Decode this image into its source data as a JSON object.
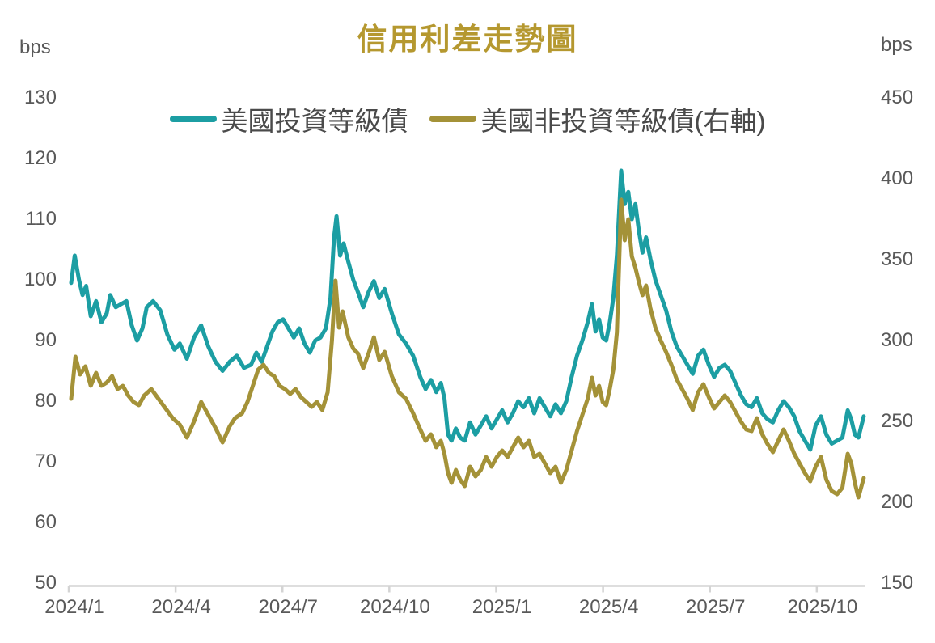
{
  "colors": {
    "title": "#B5982F",
    "axis_text": "#595959",
    "legend_text": "#4A4A4A",
    "axis_line": "#D4D4D4",
    "series_ig": "#1C9EA3",
    "series_hy": "#A49238"
  },
  "chart_data": {
    "type": "line",
    "title": "信用利差走勢圖",
    "grid": false,
    "legend_position": "top-center",
    "x_unit": "months since 2024/1 (fractional, daily spread data)",
    "x_range": [
      0,
      22.25
    ],
    "x_tick_labels": [
      "2024/1",
      "2024/4",
      "2024/7",
      "2024/10",
      "2025/1",
      "2025/4",
      "2025/7",
      "2025/10"
    ],
    "x_tick_positions_months": [
      0,
      3,
      6,
      9,
      12,
      15,
      18,
      21
    ],
    "left_axis": {
      "label": "bps",
      "range": [
        50,
        130
      ],
      "ticks": [
        130,
        120,
        110,
        100,
        90,
        80,
        70,
        60,
        50
      ]
    },
    "right_axis": {
      "label": "bps",
      "range": [
        150,
        450
      ],
      "ticks": [
        450,
        400,
        350,
        300,
        250,
        200,
        150
      ]
    },
    "series": [
      {
        "name": "美國投資等級債",
        "axis": "left",
        "unit": "bps",
        "color": "#1C9EA3",
        "points": [
          [
            0.0,
            99.5
          ],
          [
            0.1,
            104
          ],
          [
            0.22,
            100
          ],
          [
            0.32,
            97.5
          ],
          [
            0.42,
            99
          ],
          [
            0.55,
            94
          ],
          [
            0.7,
            96.5
          ],
          [
            0.85,
            93
          ],
          [
            1.0,
            94.5
          ],
          [
            1.1,
            97.5
          ],
          [
            1.25,
            95.5
          ],
          [
            1.4,
            96
          ],
          [
            1.55,
            96.5
          ],
          [
            1.7,
            92.5
          ],
          [
            1.85,
            90
          ],
          [
            2.0,
            92
          ],
          [
            2.12,
            95.5
          ],
          [
            2.3,
            96.5
          ],
          [
            2.5,
            95
          ],
          [
            2.7,
            91
          ],
          [
            2.9,
            88.5
          ],
          [
            3.05,
            89.5
          ],
          [
            3.25,
            87
          ],
          [
            3.45,
            90.5
          ],
          [
            3.65,
            92.5
          ],
          [
            3.85,
            89
          ],
          [
            4.05,
            86.5
          ],
          [
            4.25,
            85
          ],
          [
            4.45,
            86.5
          ],
          [
            4.65,
            87.5
          ],
          [
            4.85,
            85.5
          ],
          [
            5.05,
            86
          ],
          [
            5.2,
            88
          ],
          [
            5.35,
            86.5
          ],
          [
            5.5,
            89
          ],
          [
            5.65,
            91.5
          ],
          [
            5.8,
            93
          ],
          [
            5.95,
            93.5
          ],
          [
            6.1,
            92
          ],
          [
            6.25,
            90.5
          ],
          [
            6.4,
            92
          ],
          [
            6.55,
            89.5
          ],
          [
            6.7,
            88
          ],
          [
            6.85,
            90
          ],
          [
            7.0,
            90.5
          ],
          [
            7.15,
            92
          ],
          [
            7.28,
            97
          ],
          [
            7.38,
            107
          ],
          [
            7.45,
            110.5
          ],
          [
            7.55,
            104
          ],
          [
            7.65,
            106
          ],
          [
            7.78,
            103
          ],
          [
            7.92,
            100
          ],
          [
            8.05,
            98
          ],
          [
            8.2,
            95.5
          ],
          [
            8.35,
            98
          ],
          [
            8.5,
            99.8
          ],
          [
            8.65,
            97
          ],
          [
            8.8,
            98.5
          ],
          [
            9.0,
            94.5
          ],
          [
            9.2,
            91
          ],
          [
            9.4,
            89.5
          ],
          [
            9.6,
            87.5
          ],
          [
            9.8,
            84
          ],
          [
            9.95,
            82
          ],
          [
            10.1,
            83.5
          ],
          [
            10.25,
            81.5
          ],
          [
            10.38,
            83
          ],
          [
            10.48,
            80.5
          ],
          [
            10.58,
            74.5
          ],
          [
            10.68,
            73.5
          ],
          [
            10.8,
            75.5
          ],
          [
            10.92,
            74
          ],
          [
            11.05,
            73.5
          ],
          [
            11.2,
            76.5
          ],
          [
            11.35,
            74.5
          ],
          [
            11.5,
            76
          ],
          [
            11.65,
            77.5
          ],
          [
            11.8,
            75.5
          ],
          [
            11.95,
            77
          ],
          [
            12.1,
            78.5
          ],
          [
            12.25,
            76.5
          ],
          [
            12.4,
            78
          ],
          [
            12.55,
            80
          ],
          [
            12.7,
            79
          ],
          [
            12.85,
            80.5
          ],
          [
            13.0,
            78
          ],
          [
            13.15,
            80.5
          ],
          [
            13.3,
            79
          ],
          [
            13.45,
            77.5
          ],
          [
            13.6,
            79.5
          ],
          [
            13.75,
            78
          ],
          [
            13.9,
            80
          ],
          [
            14.05,
            84
          ],
          [
            14.2,
            87.5
          ],
          [
            14.35,
            90
          ],
          [
            14.5,
            93
          ],
          [
            14.62,
            96
          ],
          [
            14.72,
            91.5
          ],
          [
            14.82,
            93.5
          ],
          [
            14.92,
            90.5
          ],
          [
            15.02,
            90
          ],
          [
            15.12,
            93
          ],
          [
            15.22,
            97
          ],
          [
            15.32,
            104
          ],
          [
            15.44,
            118
          ],
          [
            15.54,
            112.5
          ],
          [
            15.64,
            114.5
          ],
          [
            15.74,
            110
          ],
          [
            15.84,
            112.5
          ],
          [
            15.94,
            108
          ],
          [
            16.04,
            104.5
          ],
          [
            16.14,
            107
          ],
          [
            16.26,
            103.5
          ],
          [
            16.4,
            100
          ],
          [
            16.55,
            97.5
          ],
          [
            16.7,
            95
          ],
          [
            16.85,
            91.5
          ],
          [
            17.0,
            89
          ],
          [
            17.15,
            87.5
          ],
          [
            17.3,
            86
          ],
          [
            17.45,
            84.5
          ],
          [
            17.6,
            87.5
          ],
          [
            17.75,
            88.5
          ],
          [
            17.9,
            86
          ],
          [
            18.05,
            84
          ],
          [
            18.2,
            85.5
          ],
          [
            18.35,
            86
          ],
          [
            18.5,
            85
          ],
          [
            18.65,
            83
          ],
          [
            18.8,
            81
          ],
          [
            18.95,
            79.5
          ],
          [
            19.1,
            79
          ],
          [
            19.25,
            80.5
          ],
          [
            19.4,
            78
          ],
          [
            19.55,
            77
          ],
          [
            19.7,
            76.5
          ],
          [
            19.85,
            78.5
          ],
          [
            20.0,
            80
          ],
          [
            20.15,
            79
          ],
          [
            20.3,
            77.5
          ],
          [
            20.45,
            75
          ],
          [
            20.6,
            73.5
          ],
          [
            20.75,
            72
          ],
          [
            20.9,
            76
          ],
          [
            21.05,
            77.5
          ],
          [
            21.2,
            74.5
          ],
          [
            21.35,
            73
          ],
          [
            21.5,
            73.5
          ],
          [
            21.65,
            74
          ],
          [
            21.8,
            78.5
          ],
          [
            21.9,
            77
          ],
          [
            22.0,
            74.5
          ],
          [
            22.1,
            74
          ],
          [
            22.25,
            77.5
          ]
        ]
      },
      {
        "name": "美國非投資等級債(右軸)",
        "axis": "right",
        "unit": "bps",
        "color": "#A49238",
        "points": [
          [
            0.0,
            264
          ],
          [
            0.12,
            290
          ],
          [
            0.25,
            279
          ],
          [
            0.4,
            284
          ],
          [
            0.55,
            272
          ],
          [
            0.7,
            280
          ],
          [
            0.85,
            272
          ],
          [
            1.0,
            274
          ],
          [
            1.15,
            278
          ],
          [
            1.3,
            270
          ],
          [
            1.45,
            272
          ],
          [
            1.6,
            266
          ],
          [
            1.75,
            262
          ],
          [
            1.9,
            260
          ],
          [
            2.05,
            266
          ],
          [
            2.25,
            270
          ],
          [
            2.45,
            264
          ],
          [
            2.65,
            258
          ],
          [
            2.85,
            252
          ],
          [
            3.05,
            248
          ],
          [
            3.25,
            240
          ],
          [
            3.45,
            250
          ],
          [
            3.65,
            262
          ],
          [
            3.85,
            254
          ],
          [
            4.05,
            246
          ],
          [
            4.25,
            237
          ],
          [
            4.45,
            247
          ],
          [
            4.6,
            252
          ],
          [
            4.8,
            255
          ],
          [
            4.95,
            262
          ],
          [
            5.1,
            272
          ],
          [
            5.25,
            282
          ],
          [
            5.4,
            285
          ],
          [
            5.55,
            280
          ],
          [
            5.7,
            278
          ],
          [
            5.85,
            272
          ],
          [
            6.0,
            270
          ],
          [
            6.15,
            267
          ],
          [
            6.3,
            270
          ],
          [
            6.45,
            265
          ],
          [
            6.6,
            262
          ],
          [
            6.75,
            259
          ],
          [
            6.9,
            262
          ],
          [
            7.05,
            257
          ],
          [
            7.2,
            268
          ],
          [
            7.32,
            300
          ],
          [
            7.42,
            337
          ],
          [
            7.52,
            308
          ],
          [
            7.62,
            318
          ],
          [
            7.78,
            302
          ],
          [
            7.92,
            295
          ],
          [
            8.05,
            292
          ],
          [
            8.2,
            283
          ],
          [
            8.35,
            292
          ],
          [
            8.5,
            302
          ],
          [
            8.65,
            288
          ],
          [
            8.8,
            293
          ],
          [
            9.0,
            278
          ],
          [
            9.2,
            268
          ],
          [
            9.4,
            264
          ],
          [
            9.6,
            255
          ],
          [
            9.8,
            245
          ],
          [
            9.95,
            238
          ],
          [
            10.1,
            242
          ],
          [
            10.25,
            234
          ],
          [
            10.38,
            238
          ],
          [
            10.48,
            230
          ],
          [
            10.58,
            218
          ],
          [
            10.68,
            212
          ],
          [
            10.8,
            220
          ],
          [
            10.92,
            214
          ],
          [
            11.05,
            210
          ],
          [
            11.2,
            222
          ],
          [
            11.35,
            216
          ],
          [
            11.5,
            220
          ],
          [
            11.65,
            228
          ],
          [
            11.8,
            222
          ],
          [
            11.95,
            228
          ],
          [
            12.1,
            232
          ],
          [
            12.25,
            228
          ],
          [
            12.4,
            234
          ],
          [
            12.55,
            240
          ],
          [
            12.7,
            234
          ],
          [
            12.85,
            238
          ],
          [
            13.0,
            228
          ],
          [
            13.15,
            230
          ],
          [
            13.3,
            224
          ],
          [
            13.45,
            218
          ],
          [
            13.6,
            222
          ],
          [
            13.75,
            212
          ],
          [
            13.9,
            220
          ],
          [
            14.05,
            232
          ],
          [
            14.2,
            244
          ],
          [
            14.35,
            254
          ],
          [
            14.5,
            264
          ],
          [
            14.62,
            277
          ],
          [
            14.72,
            266
          ],
          [
            14.82,
            272
          ],
          [
            14.92,
            262
          ],
          [
            15.02,
            260
          ],
          [
            15.12,
            270
          ],
          [
            15.22,
            282
          ],
          [
            15.32,
            305
          ],
          [
            15.44,
            387
          ],
          [
            15.54,
            362
          ],
          [
            15.64,
            375
          ],
          [
            15.74,
            352
          ],
          [
            15.84,
            345
          ],
          [
            15.94,
            336
          ],
          [
            16.04,
            328
          ],
          [
            16.14,
            334
          ],
          [
            16.26,
            320
          ],
          [
            16.4,
            308
          ],
          [
            16.55,
            300
          ],
          [
            16.7,
            293
          ],
          [
            16.85,
            285
          ],
          [
            17.0,
            276
          ],
          [
            17.15,
            270
          ],
          [
            17.3,
            264
          ],
          [
            17.45,
            257
          ],
          [
            17.6,
            268
          ],
          [
            17.75,
            273
          ],
          [
            17.9,
            265
          ],
          [
            18.05,
            258
          ],
          [
            18.2,
            262
          ],
          [
            18.35,
            266
          ],
          [
            18.5,
            262
          ],
          [
            18.65,
            256
          ],
          [
            18.8,
            250
          ],
          [
            18.95,
            245
          ],
          [
            19.1,
            244
          ],
          [
            19.25,
            252
          ],
          [
            19.4,
            242
          ],
          [
            19.55,
            236
          ],
          [
            19.7,
            231
          ],
          [
            19.85,
            238
          ],
          [
            20.0,
            245
          ],
          [
            20.15,
            238
          ],
          [
            20.3,
            230
          ],
          [
            20.45,
            224
          ],
          [
            20.6,
            218
          ],
          [
            20.75,
            213
          ],
          [
            20.9,
            222
          ],
          [
            21.05,
            228
          ],
          [
            21.2,
            214
          ],
          [
            21.35,
            207
          ],
          [
            21.5,
            205
          ],
          [
            21.65,
            209
          ],
          [
            21.8,
            230
          ],
          [
            21.9,
            224
          ],
          [
            22.0,
            212
          ],
          [
            22.1,
            203
          ],
          [
            22.25,
            215
          ]
        ]
      }
    ]
  }
}
